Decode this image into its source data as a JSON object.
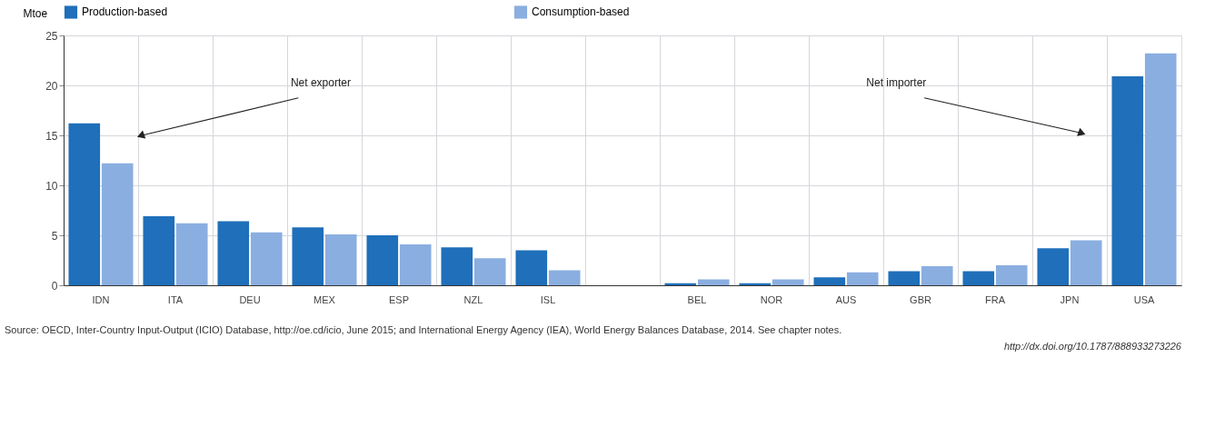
{
  "chart_data": {
    "type": "bar",
    "ylabel": "Mtoe",
    "categories": [
      "IDN",
      "ITA",
      "DEU",
      "MEX",
      "ESP",
      "NZL",
      "ISL",
      null,
      "BEL",
      "NOR",
      "AUS",
      "GBR",
      "FRA",
      "JPN",
      "USA"
    ],
    "series": [
      {
        "name": "Production-based",
        "color": "#1f6fba",
        "values": [
          16.2,
          6.9,
          6.4,
          5.8,
          5.0,
          3.8,
          3.5,
          null,
          0.2,
          0.2,
          0.8,
          1.4,
          1.4,
          3.7,
          20.9
        ]
      },
      {
        "name": "Consumption-based",
        "color": "#8aaee0",
        "values": [
          12.2,
          6.2,
          5.3,
          5.1,
          4.1,
          2.7,
          1.5,
          null,
          0.6,
          0.6,
          1.3,
          1.9,
          2.0,
          4.5,
          23.2
        ]
      }
    ],
    "ylim": [
      0,
      25
    ],
    "yticks": [
      0,
      5,
      10,
      15,
      20,
      25
    ],
    "grid": true,
    "legend": "top",
    "annotations": [
      "Net exporter",
      "Net importer",
      "Source: OECD, Inter-Country Input-Output (ICIO) Database, http://oe.cd/icio, June 2015; and International Energy Agency (IEA), World Energy Balances Database, 2014. See chapter notes.",
      "http://dx.doi.org/10.1787/888933273226"
    ]
  }
}
